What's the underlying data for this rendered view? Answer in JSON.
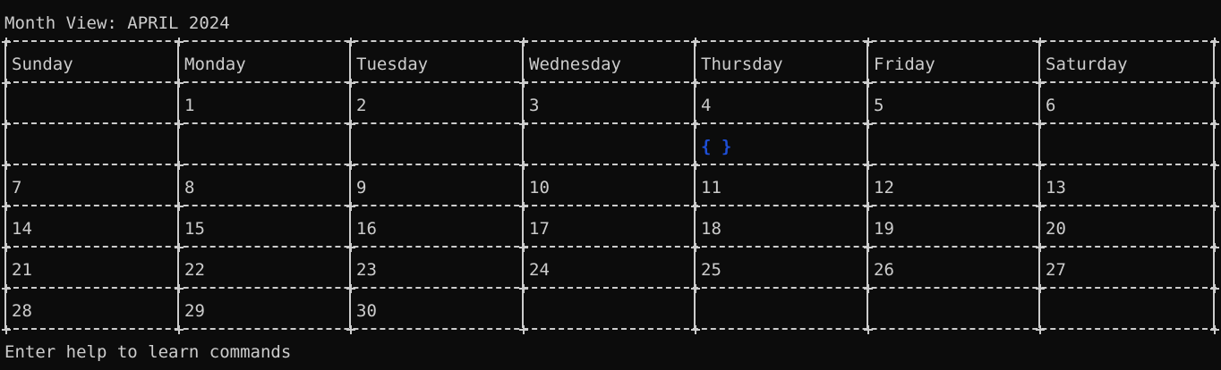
{
  "title": "Month View: APRIL 2024",
  "footer": "Enter help to learn commands",
  "colors": {
    "background": "#0c0c0c",
    "text": "#cccccc",
    "event_marker": "#1e4fd8"
  },
  "calendar": {
    "weekdays": [
      "Sunday",
      "Monday",
      "Tuesday",
      "Wednesday",
      "Thursday",
      "Friday",
      "Saturday"
    ],
    "rows": [
      [
        "",
        "1",
        "2",
        "3",
        "4",
        "5",
        "6"
      ],
      [
        "",
        "",
        "",
        "",
        "{ }",
        "",
        ""
      ],
      [
        "7",
        "8",
        "9",
        "10",
        "11",
        "12",
        "13"
      ],
      [
        "14",
        "15",
        "16",
        "17",
        "18",
        "19",
        "20"
      ],
      [
        "21",
        "22",
        "23",
        "24",
        "25",
        "26",
        "27"
      ],
      [
        "28",
        "29",
        "30",
        "",
        "",
        "",
        ""
      ]
    ],
    "event_cell": {
      "row": 1,
      "col": 4
    }
  }
}
